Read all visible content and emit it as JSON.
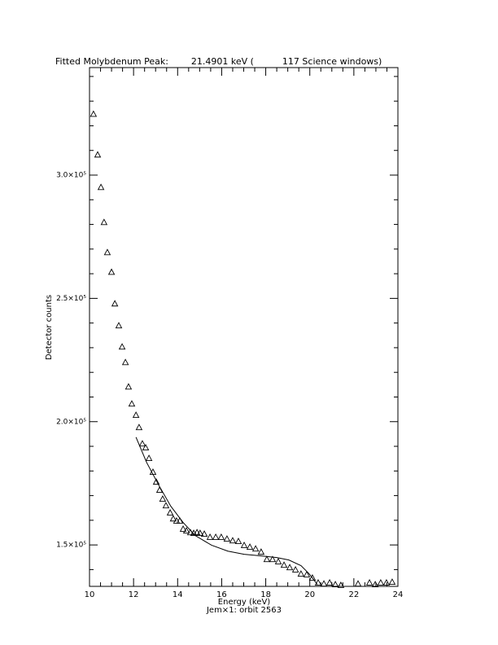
{
  "chart_data": {
    "type": "scatter",
    "title": "Fitted Molybdenum Peak:        21.4901 keV (          117 Science windows)",
    "x_label": "Energy (keV)",
    "subtitle": "Jem×1: orbit 2563",
    "y_label": "Detector counts",
    "xlim": [
      10,
      24
    ],
    "ylim": [
      133200,
      343600
    ],
    "xticks": [
      10,
      12,
      14,
      16,
      18,
      20,
      22,
      24
    ],
    "xminorticks": [
      10.5,
      11,
      11.5,
      12.5,
      13,
      13.5,
      14.5,
      15,
      15.5,
      16.5,
      17,
      17.5,
      18.5,
      19,
      19.5,
      20.5,
      21,
      21.5,
      22.5,
      23,
      23.5
    ],
    "yticks": [
      {
        "value": 150000,
        "label": "1.5×10⁵"
      },
      {
        "value": 200000,
        "label": "2.0×10⁵"
      },
      {
        "value": 250000,
        "label": "2.5×10⁵"
      },
      {
        "value": 300000,
        "label": "3.0×10⁵"
      }
    ],
    "yminorticks": [
      140000,
      160000,
      170000,
      180000,
      190000,
      210000,
      220000,
      230000,
      240000,
      260000,
      270000,
      280000,
      290000,
      310000,
      320000,
      330000,
      340000
    ],
    "series": [
      {
        "marker": "triangle",
        "color": "#000000",
        "x": [
          10.18,
          10.37,
          10.52,
          10.66,
          10.81,
          11.0,
          11.15,
          11.33,
          11.48,
          11.63,
          11.77,
          11.92,
          12.11,
          12.25,
          12.4,
          12.55,
          12.7,
          12.88,
          13.03,
          13.18,
          13.32,
          13.47,
          13.66,
          13.8,
          13.95,
          14.1,
          14.25,
          14.4,
          14.58,
          14.73,
          14.88,
          15.02,
          15.21,
          15.47,
          15.73,
          15.98,
          16.24,
          16.5,
          16.76,
          17.02,
          17.28,
          17.54,
          17.79,
          18.05,
          18.31,
          18.57,
          18.83,
          19.09,
          19.35,
          19.6,
          19.86,
          20.12,
          20.38,
          20.64,
          20.9,
          21.16,
          21.41,
          22.19,
          22.71,
          22.97,
          23.22,
          23.48,
          23.74
        ],
        "values": [
          324800,
          308300,
          295100,
          280900,
          268700,
          260700,
          247900,
          239000,
          230400,
          224100,
          214200,
          207300,
          202700,
          197700,
          191100,
          189500,
          185200,
          179600,
          175600,
          172300,
          168700,
          166000,
          163100,
          160700,
          159800,
          159800,
          156500,
          155800,
          155100,
          154800,
          155100,
          154800,
          154500,
          153200,
          153200,
          153200,
          152500,
          151800,
          151500,
          149900,
          149200,
          148500,
          147200,
          144200,
          144200,
          143300,
          141900,
          140900,
          140000,
          138300,
          138000,
          136700,
          134700,
          134300,
          134700,
          134000,
          133700,
          134300,
          134700,
          134000,
          134700,
          134700,
          135000
        ]
      },
      {
        "marker": "line",
        "color": "#000000",
        "x": [
          12.11,
          12.59,
          13.14,
          13.69,
          14.25,
          14.8,
          15.54,
          16.28,
          17.02,
          17.76,
          18.5,
          19.05,
          19.6,
          19.97,
          20.34
        ],
        "values": [
          193700,
          183500,
          174300,
          165700,
          159100,
          153800,
          149900,
          147500,
          146200,
          145600,
          144900,
          143900,
          141600,
          138300,
          134000
        ]
      }
    ]
  }
}
